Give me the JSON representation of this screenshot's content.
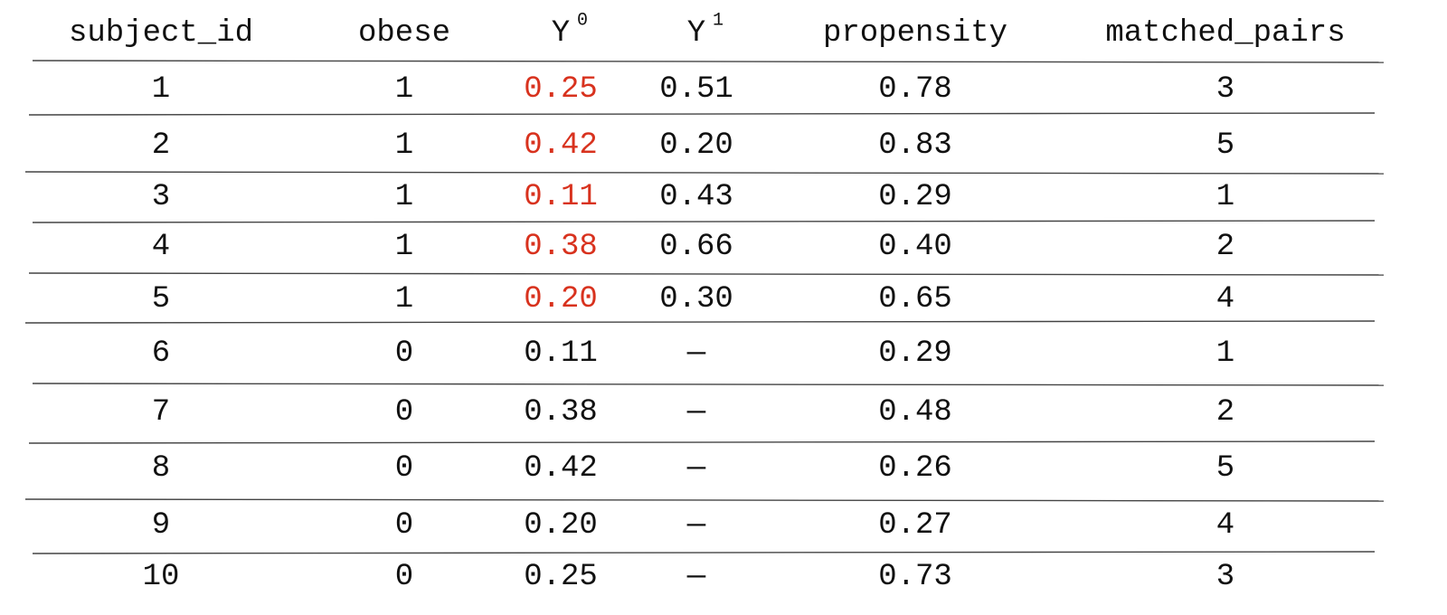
{
  "table": {
    "headers": [
      {
        "text": "subject_id"
      },
      {
        "text": "obese"
      },
      {
        "text": "Y",
        "sup": "0"
      },
      {
        "text": "Y",
        "sup": "1"
      },
      {
        "text": "propensity"
      },
      {
        "text": "matched_pairs"
      }
    ],
    "rows": [
      [
        "1",
        "1",
        "0.25",
        "0.51",
        "0.78",
        "3"
      ],
      [
        "2",
        "1",
        "0.42",
        "0.20",
        "0.83",
        "5"
      ],
      [
        "3",
        "1",
        "0.11",
        "0.43",
        "0.29",
        "1"
      ],
      [
        "4",
        "1",
        "0.38",
        "0.66",
        "0.40",
        "2"
      ],
      [
        "5",
        "1",
        "0.20",
        "0.30",
        "0.65",
        "4"
      ],
      [
        "6",
        "0",
        "0.11",
        "—",
        "0.29",
        "1"
      ],
      [
        "7",
        "0",
        "0.38",
        "—",
        "0.48",
        "2"
      ],
      [
        "8",
        "0",
        "0.42",
        "—",
        "0.26",
        "5"
      ],
      [
        "9",
        "0",
        "0.20",
        "—",
        "0.27",
        "4"
      ],
      [
        "10",
        "0",
        "0.25",
        "—",
        "0.73",
        "3"
      ]
    ],
    "highlight": {
      "color": "#d8321e",
      "column": 2,
      "rows": [
        0,
        1,
        2,
        3,
        4
      ]
    }
  }
}
